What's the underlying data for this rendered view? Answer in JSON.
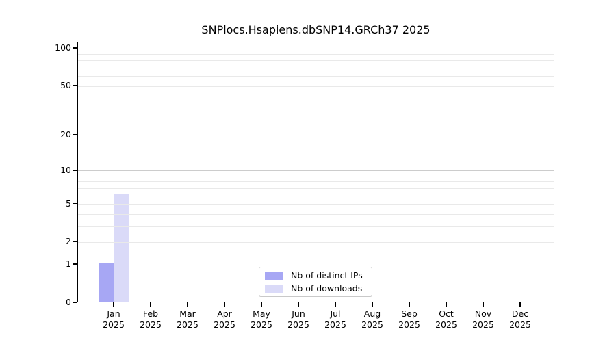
{
  "chart_data": {
    "type": "bar",
    "title": "SNPlocs.Hsapiens.dbSNP14.GRCh37 2025",
    "x_months": [
      "Jan",
      "Feb",
      "Mar",
      "Apr",
      "May",
      "Jun",
      "Jul",
      "Aug",
      "Sep",
      "Oct",
      "Nov",
      "Dec"
    ],
    "x_years": [
      "2025",
      "2025",
      "2025",
      "2025",
      "2025",
      "2025",
      "2025",
      "2025",
      "2025",
      "2025",
      "2025",
      "2025"
    ],
    "series": [
      {
        "name": "Nb of distinct IPs",
        "color": "#a7a7f4",
        "values": [
          1,
          0,
          0,
          0,
          0,
          0,
          0,
          0,
          0,
          0,
          0,
          0
        ]
      },
      {
        "name": "Nb of downloads",
        "color": "#dadaf8",
        "values": [
          6,
          0,
          0,
          0,
          0,
          0,
          0,
          0,
          0,
          0,
          0,
          0
        ]
      }
    ],
    "y_scale": "log10(1+x)",
    "y_ticks": [
      0,
      1,
      2,
      5,
      10,
      20,
      50,
      100
    ],
    "y_major_gridlines": [
      1,
      10,
      100
    ],
    "y_minor_gridlines": [
      2,
      3,
      4,
      5,
      6,
      7,
      8,
      9,
      20,
      30,
      40,
      50,
      60,
      70,
      80,
      90
    ],
    "ylim": [
      0,
      111
    ],
    "grid": true,
    "legend_position": "bottom-center",
    "colors": {
      "major_grid": "#cccccc",
      "minor_grid": "#e9e9e9",
      "axis": "#000000",
      "background": "#ffffff",
      "text": "#000000"
    }
  }
}
